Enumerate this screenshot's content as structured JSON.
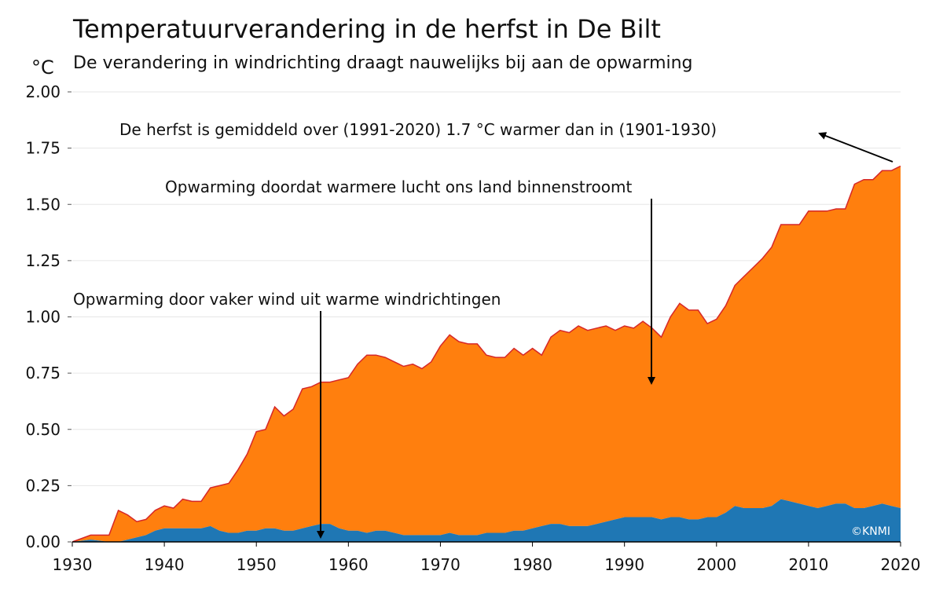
{
  "chart_data": {
    "type": "area",
    "title": "Temperatuurverandering in de herfst in De Bilt",
    "subtitle": "De verandering in windrichting draagt nauwelijks bij aan de opwarming",
    "ylabel": "°C",
    "xlim": [
      1930,
      2020
    ],
    "ylim": [
      0,
      2.0
    ],
    "x_ticks": [
      1930,
      1940,
      1950,
      1960,
      1970,
      1980,
      1990,
      2000,
      2010,
      2020
    ],
    "y_ticks": [
      "0.00",
      "0.25",
      "0.50",
      "0.75",
      "1.00",
      "1.25",
      "1.50",
      "1.75",
      "2.00"
    ],
    "grid": "horizontal",
    "stacked": true,
    "colors": {
      "wind": "#1f77b4",
      "air": "#ff7f0e",
      "air_edge": "#d62728",
      "grid": "#e6e6e6"
    },
    "x": [
      1930,
      1932,
      1934,
      1935,
      1936,
      1937,
      1938,
      1939,
      1940,
      1941,
      1942,
      1943,
      1944,
      1945,
      1946,
      1947,
      1948,
      1949,
      1950,
      1951,
      1952,
      1953,
      1954,
      1955,
      1956,
      1957,
      1958,
      1959,
      1960,
      1961,
      1962,
      1963,
      1964,
      1965,
      1966,
      1967,
      1968,
      1969,
      1970,
      1971,
      1972,
      1973,
      1974,
      1975,
      1976,
      1977,
      1978,
      1979,
      1980,
      1981,
      1982,
      1983,
      1984,
      1985,
      1986,
      1987,
      1988,
      1989,
      1990,
      1991,
      1992,
      1993,
      1994,
      1995,
      1996,
      1997,
      1998,
      1999,
      2000,
      2001,
      2002,
      2003,
      2004,
      2005,
      2006,
      2007,
      2008,
      2009,
      2010,
      2011,
      2012,
      2013,
      2014,
      2015,
      2016,
      2017,
      2018,
      2019,
      2020
    ],
    "series": [
      {
        "key": "wind",
        "values": [
          0.0,
          0.01,
          0.0,
          0.0,
          0.01,
          0.02,
          0.03,
          0.05,
          0.06,
          0.06,
          0.06,
          0.06,
          0.06,
          0.07,
          0.05,
          0.04,
          0.04,
          0.05,
          0.05,
          0.06,
          0.06,
          0.05,
          0.05,
          0.06,
          0.07,
          0.08,
          0.08,
          0.06,
          0.05,
          0.05,
          0.04,
          0.05,
          0.05,
          0.04,
          0.03,
          0.03,
          0.03,
          0.03,
          0.03,
          0.04,
          0.03,
          0.03,
          0.03,
          0.04,
          0.04,
          0.04,
          0.05,
          0.05,
          0.06,
          0.07,
          0.08,
          0.08,
          0.07,
          0.07,
          0.07,
          0.08,
          0.09,
          0.1,
          0.11,
          0.11,
          0.11,
          0.11,
          0.1,
          0.11,
          0.11,
          0.1,
          0.1,
          0.11,
          0.11,
          0.13,
          0.16,
          0.15,
          0.15,
          0.15,
          0.16,
          0.19,
          0.18,
          0.17,
          0.16,
          0.15,
          0.16,
          0.17,
          0.17,
          0.15,
          0.15,
          0.16,
          0.17,
          0.16,
          0.15
        ]
      },
      {
        "key": "total",
        "values": [
          0.0,
          0.03,
          0.03,
          0.14,
          0.12,
          0.09,
          0.1,
          0.14,
          0.16,
          0.15,
          0.19,
          0.18,
          0.18,
          0.24,
          0.25,
          0.26,
          0.32,
          0.39,
          0.49,
          0.5,
          0.6,
          0.56,
          0.59,
          0.68,
          0.69,
          0.71,
          0.71,
          0.72,
          0.73,
          0.79,
          0.83,
          0.83,
          0.82,
          0.8,
          0.78,
          0.79,
          0.77,
          0.8,
          0.87,
          0.92,
          0.89,
          0.88,
          0.88,
          0.83,
          0.82,
          0.82,
          0.86,
          0.83,
          0.86,
          0.83,
          0.91,
          0.94,
          0.93,
          0.96,
          0.94,
          0.95,
          0.96,
          0.94,
          0.96,
          0.95,
          0.98,
          0.95,
          0.91,
          1.0,
          1.06,
          1.03,
          1.03,
          0.97,
          0.99,
          1.05,
          1.14,
          1.18,
          1.22,
          1.26,
          1.31,
          1.41,
          1.41,
          1.41,
          1.47,
          1.47,
          1.47,
          1.48,
          1.48,
          1.59,
          1.61,
          1.61,
          1.65,
          1.65,
          1.67
        ]
      }
    ],
    "annotations": {
      "top": "De herfst is gemiddeld over (1991-2020) 1.7 °C warmer dan in (1901-1930)",
      "middle": "Opwarming doordat warmere lucht ons land binnenstroomt",
      "bottom": "Opwarming door vaker wind uit warme windrichtingen"
    },
    "credit": "©KNMI"
  }
}
